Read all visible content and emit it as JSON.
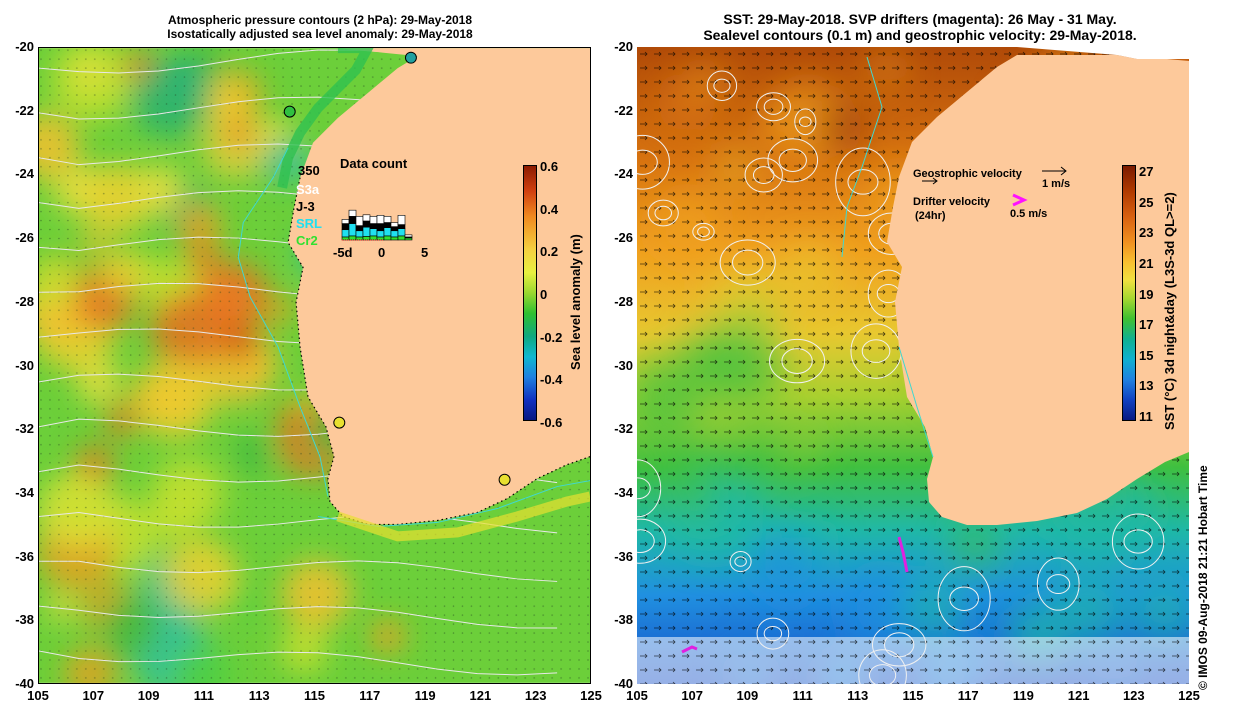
{
  "left_panel": {
    "title_line1": "Atmospheric pressure contours (2 hPa): 29-May-2018",
    "title_line2": "Isostatically adjusted sea level anomaly: 29-May-2018",
    "y_ticks": [
      "-20",
      "-22",
      "-24",
      "-26",
      "-28",
      "-30",
      "-32",
      "-34",
      "-36",
      "-38",
      "-40"
    ],
    "x_ticks": [
      "105",
      "107",
      "109",
      "111",
      "113",
      "115",
      "117",
      "119",
      "121",
      "123",
      "125"
    ],
    "colorbar": {
      "label": "Sea level anomaly (m)",
      "ticks": [
        "0.6",
        "0.4",
        "0.2",
        "0",
        "-0.2",
        "-0.4",
        "-0.6"
      ],
      "colors": [
        "#8b1a00",
        "#d04010",
        "#f08a20",
        "#f5d040",
        "#e8f040",
        "#9ad830",
        "#30c030",
        "#10a880",
        "#10b8d0",
        "#2080e0",
        "#1030c0",
        "#081880"
      ]
    },
    "data_count": {
      "title": "Data count",
      "max": "350",
      "legend": [
        {
          "label": "S3a",
          "color": "#ffffff"
        },
        {
          "label": "J-3",
          "color": "#000000"
        },
        {
          "label": "SRL",
          "color": "#20e0f0"
        },
        {
          "label": "Cr2",
          "color": "#30e030"
        }
      ],
      "x_ticks": [
        "-5d",
        "0",
        "5"
      ],
      "bars": [
        {
          "day": -5,
          "s3a": 40,
          "j3": 60,
          "srl": 70,
          "cr2": 30
        },
        {
          "day": -4,
          "s3a": 60,
          "j3": 70,
          "srl": 120,
          "cr2": 40
        },
        {
          "day": -3,
          "s3a": 90,
          "j3": 50,
          "srl": 60,
          "cr2": 30
        },
        {
          "day": -2,
          "s3a": 60,
          "j3": 60,
          "srl": 90,
          "cr2": 35
        },
        {
          "day": -1,
          "s3a": 70,
          "j3": 50,
          "srl": 70,
          "cr2": 40
        },
        {
          "day": 0,
          "s3a": 80,
          "j3": 70,
          "srl": 60,
          "cr2": 30
        },
        {
          "day": 1,
          "s3a": 60,
          "j3": 50,
          "srl": 80,
          "cr2": 40
        },
        {
          "day": 2,
          "s3a": 40,
          "j3": 40,
          "srl": 60,
          "cr2": 30
        },
        {
          "day": 3,
          "s3a": 90,
          "j3": 40,
          "srl": 70,
          "cr2": 40
        },
        {
          "day": 4,
          "s3a": 20,
          "j3": 10,
          "srl": 0,
          "cr2": 20
        }
      ]
    },
    "tide_gauges": [
      {
        "lon": 118.5,
        "lat": -20.3,
        "color": "#20a0a0"
      },
      {
        "lon": 114.1,
        "lat": -22.0,
        "color": "#30c040"
      },
      {
        "lon": 115.9,
        "lat": -31.8,
        "color": "#e8e030"
      },
      {
        "lon": 121.9,
        "lat": -33.6,
        "color": "#e8e030"
      }
    ]
  },
  "right_panel": {
    "title_line1": "SST: 29-May-2018. SVP drifters (magenta): 26 May - 31 May.",
    "title_line2": "Sealevel contours (0.1 m) and geostrophic velocity: 29-May-2018.",
    "y_ticks": [
      "-20",
      "-22",
      "-24",
      "-26",
      "-28",
      "-30",
      "-32",
      "-34",
      "-36",
      "-38",
      "-40"
    ],
    "x_ticks": [
      "105",
      "107",
      "109",
      "111",
      "113",
      "115",
      "117",
      "119",
      "121",
      "123",
      "125"
    ],
    "legend": {
      "geo_label": "Geostrophic velocity",
      "geo_scale": "1 m/s",
      "drifter_label": "Drifter velocity",
      "drifter_sub": "(24hr)",
      "drifter_scale": "0.5 m/s"
    },
    "colorbar": {
      "label": "SST (°C) 3d night&day (L3S-3d QL>=2)",
      "ticks": [
        "27",
        "25",
        "23",
        "21",
        "19",
        "17",
        "15",
        "13",
        "11"
      ],
      "colors": [
        "#7a1a00",
        "#b03a00",
        "#d86010",
        "#f09020",
        "#f8c030",
        "#f0e040",
        "#a8d830",
        "#40c030",
        "#10b090",
        "#10b0d0",
        "#2080e0",
        "#1040c0",
        "#081880"
      ]
    },
    "credit": "© IMOS 09-Aug-2018 21:21 Hobart Time"
  },
  "colors": {
    "land": "#fdc99b",
    "coast_line": "#40d8d0",
    "contour": "#e8e8e8"
  }
}
